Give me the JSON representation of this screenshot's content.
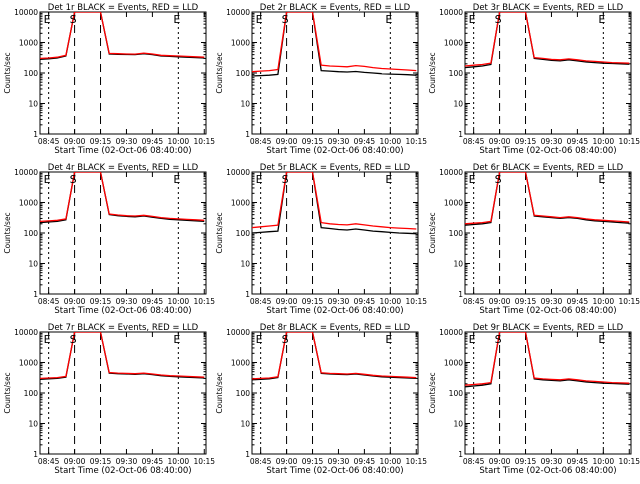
{
  "figure": {
    "xlabel": "Start Time (02-Oct-06 08:40:00)",
    "ylabel": "Counts/sec",
    "xticks": [
      "08:45",
      "09:00",
      "09:15",
      "09:30",
      "09:45",
      "10:00",
      "10:15"
    ],
    "yticks": [
      "1",
      "10",
      "100",
      "1000",
      "10000"
    ],
    "marker_labels": {
      "E": "E",
      "S": "S"
    },
    "colors": {
      "events": "#000000",
      "lld": "#ff0000"
    }
  },
  "chart_data": [
    {
      "type": "line",
      "title": "Det 1r BLACK = Events, RED = LLD",
      "xlabel": "Start Time (02-Oct-06 08:40:00)",
      "ylabel": "Counts/sec",
      "yscale": "log",
      "ylim": [
        1,
        10000
      ],
      "x_minutes": [
        0,
        5,
        10,
        15,
        20,
        25,
        30,
        35,
        40,
        45,
        50,
        55,
        60,
        65,
        70,
        75,
        80,
        85,
        90,
        95
      ],
      "series": [
        {
          "name": "Events",
          "color": "#000000",
          "values": [
            280,
            290,
            310,
            360,
            12000,
            12000,
            12000,
            12000,
            420,
            410,
            405,
            400,
            430,
            400,
            360,
            350,
            340,
            330,
            320,
            310
          ]
        },
        {
          "name": "LLD",
          "color": "#ff0000",
          "values": [
            300,
            310,
            330,
            380,
            12000,
            12000,
            12000,
            12000,
            440,
            430,
            420,
            415,
            450,
            420,
            380,
            370,
            360,
            350,
            340,
            330
          ]
        }
      ]
    },
    {
      "type": "line",
      "title": "Det 2r BLACK = Events, RED = LLD",
      "xlabel": "Start Time (02-Oct-06 08:40:00)",
      "ylabel": "Counts/sec",
      "yscale": "log",
      "ylim": [
        1,
        10000
      ],
      "x_minutes": [
        0,
        5,
        10,
        15,
        20,
        25,
        30,
        35,
        40,
        45,
        50,
        55,
        60,
        65,
        70,
        75,
        80,
        85,
        90,
        95
      ],
      "series": [
        {
          "name": "Events",
          "color": "#000000",
          "values": [
            80,
            82,
            85,
            90,
            12000,
            12000,
            12000,
            12000,
            120,
            115,
            110,
            108,
            112,
            105,
            100,
            95,
            92,
            90,
            88,
            85
          ]
        },
        {
          "name": "LLD",
          "color": "#ff0000",
          "values": [
            110,
            115,
            120,
            130,
            12000,
            12000,
            12000,
            12000,
            180,
            170,
            165,
            160,
            175,
            165,
            150,
            140,
            135,
            130,
            125,
            120
          ]
        }
      ]
    },
    {
      "type": "line",
      "title": "Det 3r BLACK = Events, RED = LLD",
      "xlabel": "Start Time (02-Oct-06 08:40:00)",
      "ylabel": "Counts/sec",
      "yscale": "log",
      "ylim": [
        1,
        10000
      ],
      "x_minutes": [
        0,
        5,
        10,
        15,
        20,
        25,
        30,
        35,
        40,
        45,
        50,
        55,
        60,
        65,
        70,
        75,
        80,
        85,
        90,
        95
      ],
      "series": [
        {
          "name": "Events",
          "color": "#000000",
          "values": [
            150,
            160,
            170,
            190,
            12000,
            12000,
            12000,
            12000,
            300,
            280,
            260,
            250,
            270,
            250,
            230,
            220,
            210,
            205,
            200,
            195
          ]
        },
        {
          "name": "LLD",
          "color": "#ff0000",
          "values": [
            170,
            180,
            190,
            210,
            12000,
            12000,
            12000,
            12000,
            320,
            300,
            280,
            270,
            290,
            270,
            250,
            240,
            230,
            220,
            215,
            210
          ]
        }
      ]
    },
    {
      "type": "line",
      "title": "Det 4r BLACK = Events, RED = LLD",
      "xlabel": "Start Time (02-Oct-06 08:40:00)",
      "ylabel": "Counts/sec",
      "yscale": "log",
      "ylim": [
        1,
        10000
      ],
      "x_minutes": [
        0,
        5,
        10,
        15,
        20,
        25,
        30,
        35,
        40,
        45,
        50,
        55,
        60,
        65,
        70,
        75,
        80,
        85,
        90,
        95
      ],
      "series": [
        {
          "name": "Events",
          "color": "#000000",
          "values": [
            220,
            230,
            240,
            270,
            12000,
            12000,
            12000,
            12000,
            400,
            370,
            350,
            340,
            360,
            330,
            300,
            280,
            270,
            260,
            250,
            240
          ]
        },
        {
          "name": "LLD",
          "color": "#ff0000",
          "values": [
            240,
            250,
            260,
            290,
            12000,
            12000,
            12000,
            12000,
            420,
            390,
            370,
            360,
            380,
            350,
            320,
            300,
            290,
            280,
            270,
            260
          ]
        }
      ]
    },
    {
      "type": "line",
      "title": "Det 5r BLACK = Events, RED = LLD",
      "xlabel": "Start Time (02-Oct-06 08:40:00)",
      "ylabel": "Counts/sec",
      "yscale": "log",
      "ylim": [
        1,
        10000
      ],
      "x_minutes": [
        0,
        5,
        10,
        15,
        20,
        25,
        30,
        35,
        40,
        45,
        50,
        55,
        60,
        65,
        70,
        75,
        80,
        85,
        90,
        95
      ],
      "series": [
        {
          "name": "Events",
          "color": "#000000",
          "values": [
            100,
            105,
            110,
            115,
            12000,
            12000,
            12000,
            12000,
            150,
            140,
            130,
            125,
            135,
            125,
            115,
            110,
            105,
            100,
            98,
            95
          ]
        },
        {
          "name": "LLD",
          "color": "#ff0000",
          "values": [
            150,
            160,
            170,
            180,
            12000,
            12000,
            12000,
            12000,
            220,
            200,
            190,
            185,
            200,
            185,
            170,
            160,
            150,
            145,
            140,
            135
          ]
        }
      ]
    },
    {
      "type": "line",
      "title": "Det 6r BLACK = Events, RED = LLD",
      "xlabel": "Start Time (02-Oct-06 08:40:00)",
      "ylabel": "Counts/sec",
      "yscale": "log",
      "ylim": [
        1,
        10000
      ],
      "x_minutes": [
        0,
        5,
        10,
        15,
        20,
        25,
        30,
        35,
        40,
        45,
        50,
        55,
        60,
        65,
        70,
        75,
        80,
        85,
        90,
        95
      ],
      "series": [
        {
          "name": "Events",
          "color": "#000000",
          "values": [
            180,
            190,
            200,
            220,
            12000,
            12000,
            12000,
            12000,
            360,
            340,
            320,
            300,
            320,
            300,
            270,
            250,
            240,
            230,
            220,
            210
          ]
        },
        {
          "name": "LLD",
          "color": "#ff0000",
          "values": [
            200,
            210,
            220,
            240,
            12000,
            12000,
            12000,
            12000,
            380,
            360,
            340,
            320,
            340,
            320,
            290,
            270,
            260,
            250,
            240,
            230
          ]
        }
      ]
    },
    {
      "type": "line",
      "title": "Det 7r BLACK = Events, RED = LLD",
      "xlabel": "Start Time (02-Oct-06 08:40:00)",
      "ylabel": "Counts/sec",
      "yscale": "log",
      "ylim": [
        1,
        10000
      ],
      "x_minutes": [
        0,
        5,
        10,
        15,
        20,
        25,
        30,
        35,
        40,
        45,
        50,
        55,
        60,
        65,
        70,
        75,
        80,
        85,
        90,
        95
      ],
      "series": [
        {
          "name": "Events",
          "color": "#000000",
          "values": [
            280,
            290,
            300,
            330,
            12000,
            12000,
            12000,
            12000,
            450,
            430,
            420,
            410,
            430,
            400,
            370,
            350,
            340,
            330,
            320,
            310
          ]
        },
        {
          "name": "LLD",
          "color": "#ff0000",
          "values": [
            300,
            310,
            320,
            350,
            12000,
            12000,
            12000,
            12000,
            470,
            450,
            440,
            430,
            450,
            420,
            390,
            370,
            360,
            350,
            340,
            330
          ]
        }
      ]
    },
    {
      "type": "line",
      "title": "Det 8r BLACK = Events, RED = LLD",
      "xlabel": "Start Time (02-Oct-06 08:40:00)",
      "ylabel": "Counts/sec",
      "yscale": "log",
      "ylim": [
        1,
        10000
      ],
      "x_minutes": [
        0,
        5,
        10,
        15,
        20,
        25,
        30,
        35,
        40,
        45,
        50,
        55,
        60,
        65,
        70,
        75,
        80,
        85,
        90,
        95
      ],
      "series": [
        {
          "name": "Events",
          "color": "#000000",
          "values": [
            270,
            280,
            290,
            320,
            12000,
            12000,
            12000,
            12000,
            440,
            420,
            410,
            400,
            420,
            390,
            360,
            340,
            330,
            320,
            310,
            300
          ]
        },
        {
          "name": "LLD",
          "color": "#ff0000",
          "values": [
            290,
            300,
            310,
            340,
            12000,
            12000,
            12000,
            12000,
            460,
            440,
            430,
            420,
            440,
            410,
            380,
            360,
            350,
            340,
            330,
            320
          ]
        }
      ]
    },
    {
      "type": "line",
      "title": "Det 9r BLACK = Events, RED = LLD",
      "xlabel": "Start Time (02-Oct-06 08:40:00)",
      "ylabel": "Counts/sec",
      "yscale": "log",
      "ylim": [
        1,
        10000
      ],
      "x_minutes": [
        0,
        5,
        10,
        15,
        20,
        25,
        30,
        35,
        40,
        45,
        50,
        55,
        60,
        65,
        70,
        75,
        80,
        85,
        90,
        95
      ],
      "series": [
        {
          "name": "Events",
          "color": "#000000",
          "values": [
            160,
            170,
            180,
            200,
            12000,
            12000,
            12000,
            12000,
            290,
            270,
            260,
            250,
            270,
            250,
            230,
            220,
            210,
            205,
            200,
            195
          ]
        },
        {
          "name": "LLD",
          "color": "#ff0000",
          "values": [
            180,
            190,
            200,
            220,
            12000,
            12000,
            12000,
            12000,
            310,
            290,
            280,
            270,
            290,
            270,
            250,
            240,
            230,
            220,
            215,
            210
          ]
        }
      ]
    }
  ]
}
